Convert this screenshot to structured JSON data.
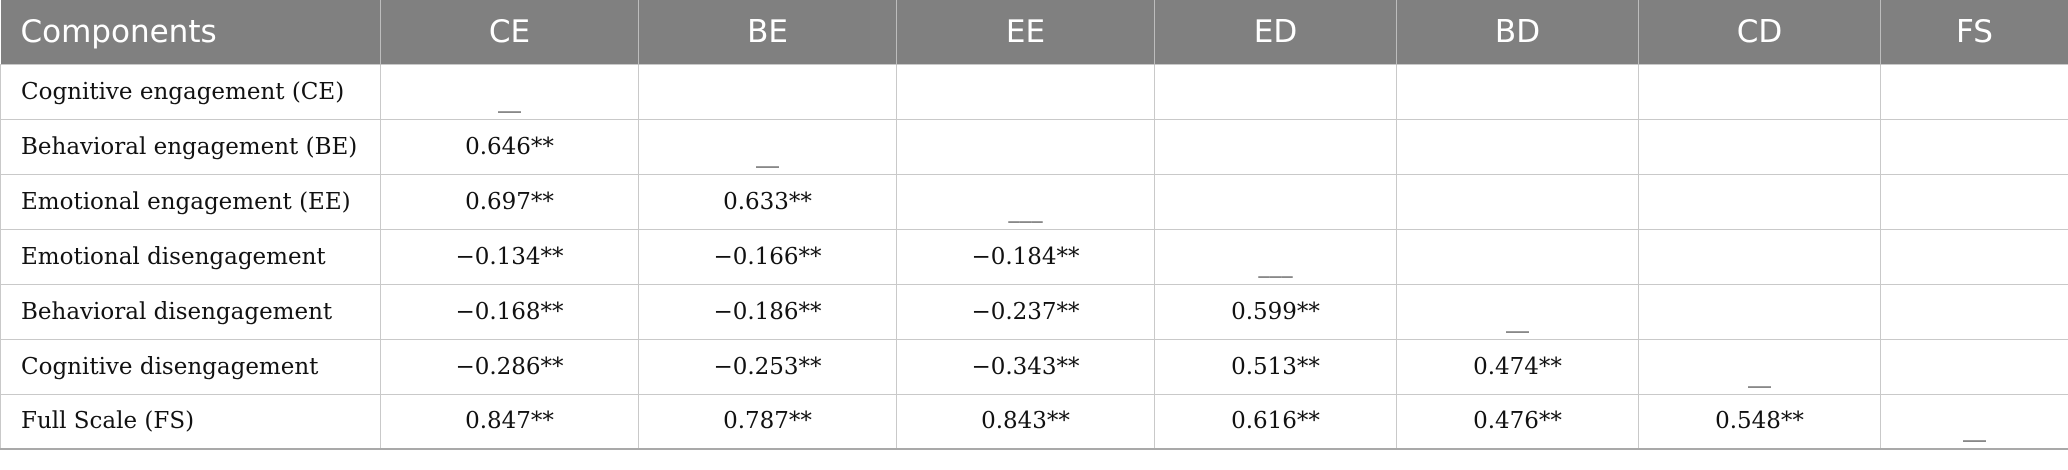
{
  "table": {
    "headers": [
      "Components",
      "CE",
      "BE",
      "EE",
      "ED",
      "BD",
      "CD",
      "FS"
    ],
    "rows": [
      {
        "label": "Cognitive engagement (CE)",
        "values": [
          "__",
          "",
          "",
          "",
          "",
          "",
          ""
        ]
      },
      {
        "label": "Behavioral engagement (BE)",
        "values": [
          "0.646**",
          "__",
          "",
          "",
          "",
          "",
          ""
        ]
      },
      {
        "label": "Emotional engagement (EE)",
        "values": [
          "0.697**",
          "0.633**",
          "___",
          "",
          "",
          "",
          ""
        ]
      },
      {
        "label": "Emotional disengagement",
        "values": [
          "−0.134**",
          "−0.166**",
          "−0.184**",
          "___",
          "",
          "",
          ""
        ]
      },
      {
        "label": "Behavioral disengagement",
        "values": [
          "−0.168**",
          "−0.186**",
          "−0.237**",
          "0.599**",
          "__",
          "",
          ""
        ]
      },
      {
        "label": "Cognitive disengagement",
        "values": [
          "−0.286**",
          "−0.253**",
          "−0.343**",
          "0.513**",
          "0.474**",
          "__",
          ""
        ]
      },
      {
        "label": "Full Scale (FS)",
        "values": [
          "0.847**",
          "0.787**",
          "0.843**",
          "0.616**",
          "0.476**",
          "0.548**",
          "__"
        ]
      }
    ]
  }
}
